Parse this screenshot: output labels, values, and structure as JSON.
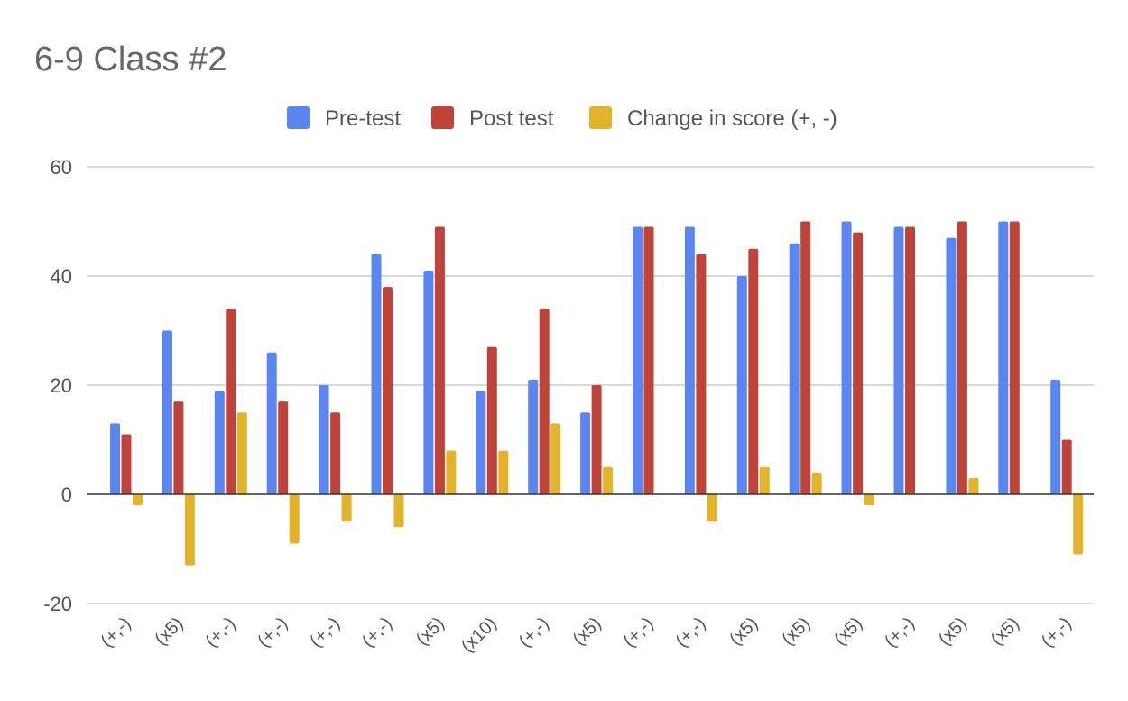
{
  "chart_data": {
    "type": "bar",
    "title": "6-9 Class #2",
    "xlabel": "",
    "ylabel": "",
    "ylim": [
      -20,
      60
    ],
    "yticks": [
      -20,
      0,
      20,
      40,
      60
    ],
    "grid": true,
    "legend_position": "top",
    "categories": [
      "(+,-)",
      "(x5)",
      "(+,-)",
      "(+,-)",
      "(+,-)",
      "(+,-)",
      "(x5)",
      "(x10)",
      "(+,-)",
      "(x5)",
      "(+,-)",
      "(+,-)",
      "(x5)",
      "(x5)",
      "(x5)",
      "(+,-)",
      "(x5)",
      "(x5)",
      "(+,-)"
    ],
    "series": [
      {
        "name": "Pre-test",
        "color": "#5b86f0",
        "values": [
          13,
          30,
          19,
          26,
          20,
          44,
          41,
          19,
          21,
          15,
          49,
          49,
          40,
          46,
          50,
          49,
          47,
          50,
          21
        ]
      },
      {
        "name": "Post test",
        "color": "#c0433a",
        "values": [
          11,
          17,
          34,
          17,
          15,
          38,
          49,
          27,
          34,
          20,
          49,
          44,
          45,
          50,
          48,
          49,
          50,
          50,
          10
        ]
      },
      {
        "name": "Change in score (+, -)",
        "color": "#e3b42b",
        "values": [
          -2,
          -13,
          15,
          -9,
          -5,
          -6,
          8,
          8,
          13,
          5,
          0,
          -5,
          5,
          4,
          -2,
          0,
          3,
          0,
          -11
        ]
      }
    ]
  }
}
